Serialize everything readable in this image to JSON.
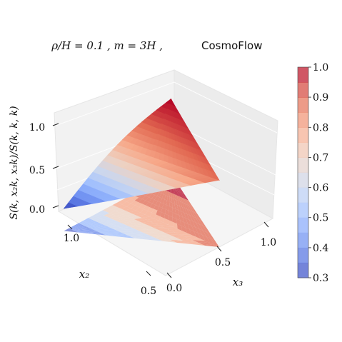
{
  "chart_data": {
    "type": "surface3d",
    "title": {
      "math_part": "ρ/H = 0.1 ,    m = 3H ,",
      "label": "CosmoFlow"
    },
    "axes": {
      "x2": {
        "label": "x₂",
        "range": [
          0.5,
          1.0
        ],
        "ticks": [
          "1.0",
          "0.5"
        ]
      },
      "x3": {
        "label": "x₃",
        "range": [
          0.0,
          1.0
        ],
        "ticks": [
          "0.0",
          "0.5",
          "1.0"
        ]
      },
      "z": {
        "label": "S(k, x₂k, x₃k)/S(k, k, k)",
        "range": [
          0.0,
          1.15
        ],
        "ticks": [
          "0.0",
          "0.5",
          "1.0"
        ]
      }
    },
    "colorbar": {
      "range": [
        0.3,
        1.0
      ],
      "ticks": [
        "0.3",
        "0.4",
        "0.5",
        "0.6",
        "0.7",
        "0.8",
        "0.9",
        "1.0"
      ]
    },
    "colormap": {
      "name": "coolwarm",
      "stops": [
        "#3b4cc0",
        "#6788ee",
        "#9abbff",
        "#c9d7f0",
        "#edd1c2",
        "#f7a889",
        "#e26952",
        "#b40426"
      ]
    },
    "surface": {
      "domain": "x3 from 0 to 1, x2 from max(x3, 1 - x3) to 1",
      "corner_values": {
        "x3_0_x2_1": 0.3,
        "x3_0.5_x2_0.5": 0.7,
        "x3_1_x2_1": 1.0
      },
      "has_contour_projection": true
    }
  }
}
